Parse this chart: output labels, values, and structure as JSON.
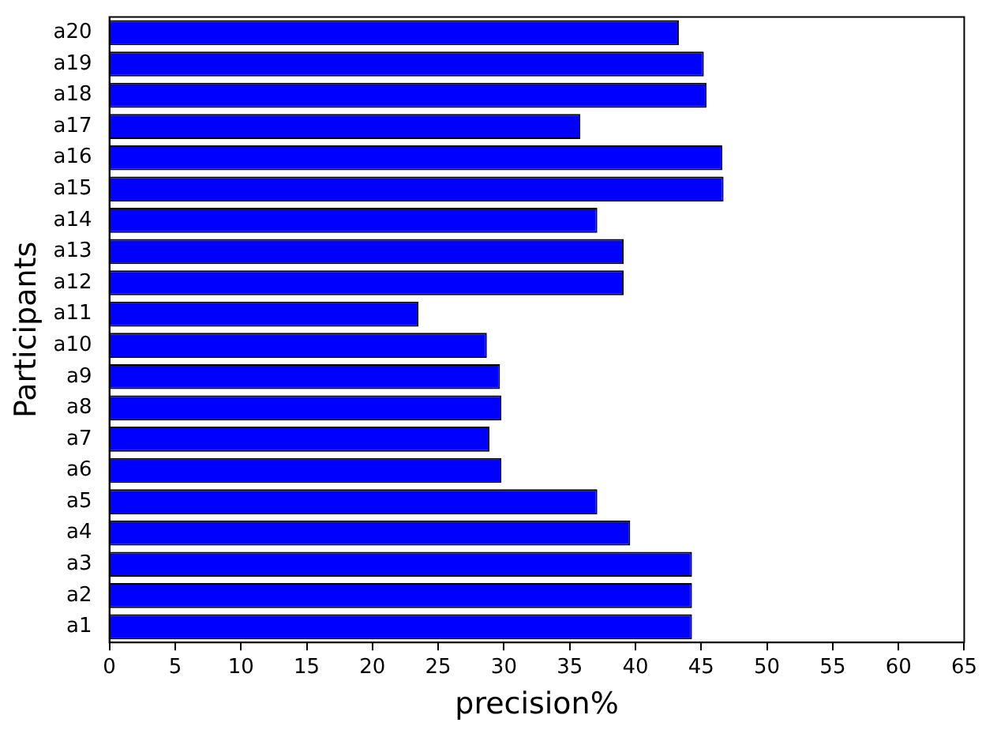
{
  "chart_data": {
    "type": "bar",
    "orientation": "horizontal",
    "xlabel": "precision%",
    "ylabel": "Participants",
    "categories": [
      "a20",
      "a19",
      "a18",
      "a17",
      "a16",
      "a15",
      "a14",
      "a13",
      "a12",
      "a11",
      "a10",
      "a9",
      "a8",
      "a7",
      "a6",
      "a5",
      "a4",
      "a3",
      "a2",
      "a1"
    ],
    "values": [
      43.3,
      45.2,
      45.4,
      35.8,
      46.6,
      46.7,
      37.1,
      39.1,
      39.1,
      23.5,
      28.7,
      29.7,
      29.8,
      28.9,
      29.8,
      37.1,
      39.6,
      44.3,
      44.3,
      44.3
    ],
    "color": "#0000ff",
    "xlim": [
      0,
      65
    ],
    "xticks": [
      0,
      5,
      10,
      15,
      20,
      25,
      30,
      35,
      40,
      45,
      50,
      55,
      60,
      65
    ],
    "grid": false,
    "legend": false
  }
}
